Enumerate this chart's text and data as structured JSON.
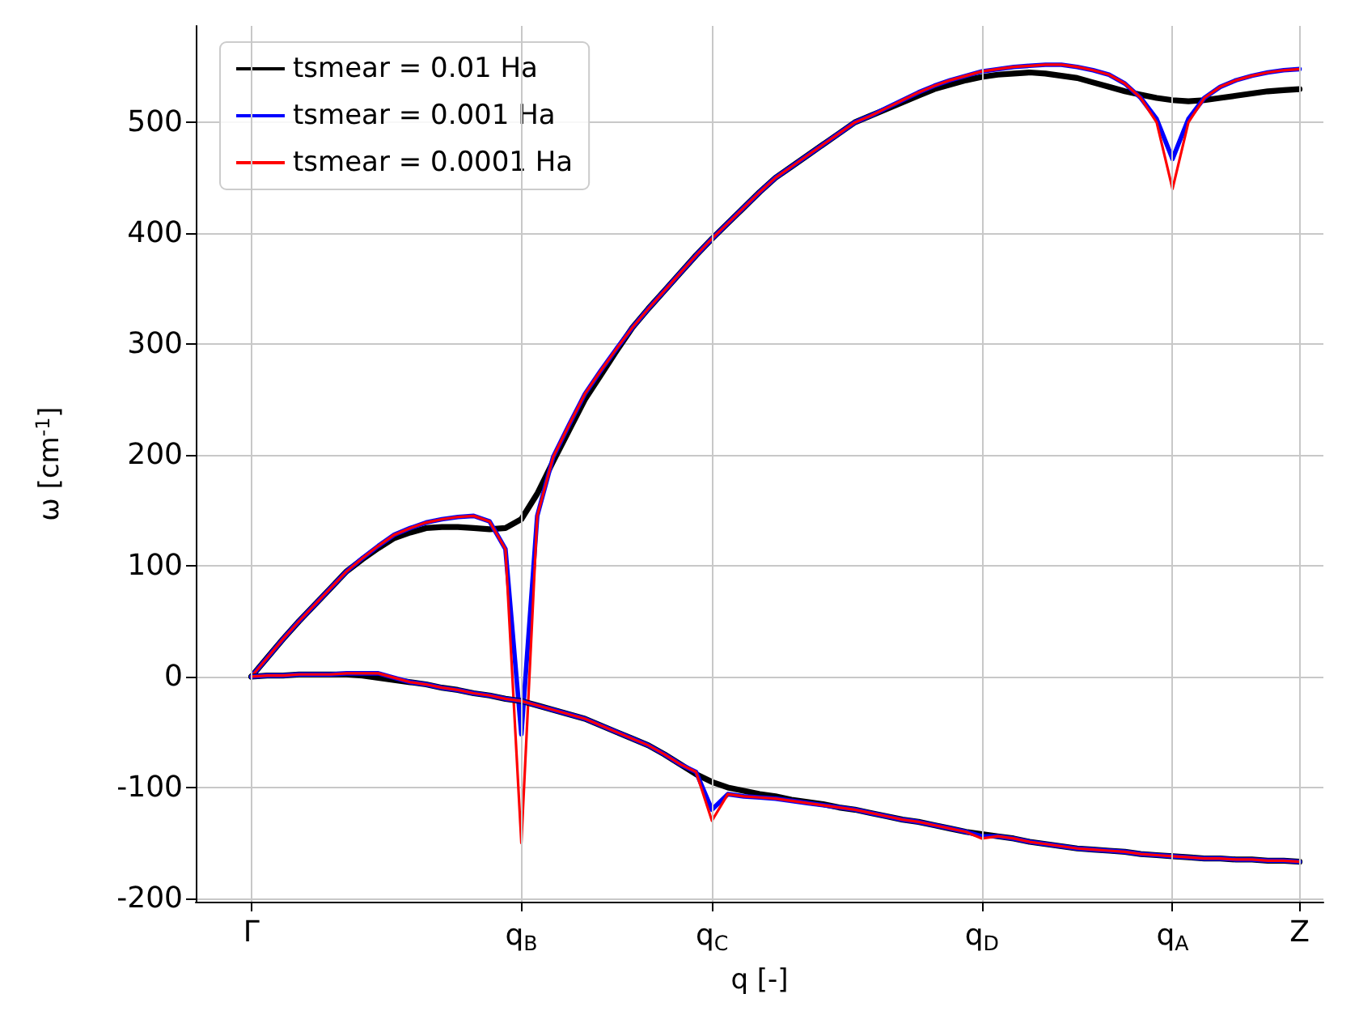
{
  "chart_data": {
    "type": "line",
    "xlabel": "q [-]",
    "ylabel": "ω [cm$^{-1}$]",
    "categories": [
      "Γ",
      null,
      null,
      null,
      null,
      null,
      null,
      null,
      null,
      null,
      null,
      null,
      null,
      null,
      null,
      null,
      null,
      "q$_{B}$",
      null,
      null,
      null,
      null,
      null,
      null,
      null,
      null,
      null,
      null,
      null,
      "q$_{C}$",
      null,
      null,
      null,
      null,
      null,
      null,
      null,
      null,
      null,
      null,
      null,
      null,
      null,
      null,
      null,
      null,
      "q$_{D}$",
      null,
      null,
      null,
      null,
      null,
      null,
      null,
      null,
      null,
      null,
      null,
      "q$_{A}$",
      null,
      null,
      null,
      null,
      null,
      null,
      null,
      "Z"
    ],
    "ylim": [
      -203,
      587
    ],
    "yticks": [
      -200,
      -100,
      0,
      100,
      200,
      300,
      400,
      500
    ],
    "grid": true,
    "legend": "top left",
    "marker": "none",
    "line_style": "solid",
    "series": [
      {
        "name": "tsmear = 0.01 Ha",
        "color": "#000000",
        "values": [
          0,
          17,
          34,
          50,
          65,
          80,
          95,
          106,
          116,
          125,
          130,
          134,
          135,
          135,
          134,
          133,
          134,
          142,
          165,
          194,
          222,
          250,
          272,
          294,
          315,
          332,
          348,
          364,
          380,
          395,
          409,
          423,
          437,
          450,
          460,
          470,
          480,
          490,
          500,
          506,
          512,
          518,
          524,
          530,
          534,
          538,
          541,
          543,
          544,
          545,
          544,
          542,
          540,
          536,
          532,
          528,
          525,
          522,
          520,
          519,
          520,
          522,
          524,
          526,
          528,
          529,
          530
        ]
      },
      {
        "name": "tsmear = 0.001 Ha",
        "color": "#0000ff",
        "values": [
          0,
          17,
          34,
          50,
          65,
          80,
          95,
          107,
          118,
          128,
          134,
          139,
          142,
          144,
          145,
          140,
          115,
          -52,
          145,
          198,
          227,
          255,
          276,
          296,
          315,
          332,
          348,
          364,
          380,
          395,
          409,
          423,
          437,
          450,
          460,
          470,
          480,
          490,
          500,
          506,
          513,
          520,
          527,
          533,
          538,
          542,
          546,
          548,
          550,
          551,
          552,
          552,
          550,
          547,
          543,
          535,
          522,
          503,
          467,
          503,
          522,
          532,
          538,
          542,
          545,
          547,
          548
        ]
      },
      {
        "name": "tsmear = 0.0001 Ha",
        "color": "#ff0000",
        "values": [
          0,
          17,
          34,
          50,
          65,
          80,
          95,
          107,
          118,
          128,
          134,
          139,
          142,
          144,
          145,
          140,
          115,
          -150,
          145,
          198,
          227,
          255,
          276,
          296,
          315,
          332,
          348,
          364,
          380,
          395,
          409,
          423,
          437,
          450,
          460,
          470,
          480,
          490,
          500,
          506,
          513,
          520,
          527,
          533,
          538,
          542,
          546,
          548,
          550,
          551,
          552,
          552,
          550,
          547,
          543,
          535,
          522,
          500,
          440,
          500,
          522,
          532,
          538,
          542,
          545,
          547,
          548
        ]
      },
      {
        "color": "#000000",
        "values": [
          0,
          1,
          1,
          2,
          2,
          2,
          2,
          1,
          -1,
          -3,
          -5,
          -7,
          -10,
          -12,
          -15,
          -17,
          -20,
          -22,
          -26,
          -30,
          -34,
          -38,
          -44,
          -50,
          -56,
          -62,
          -70,
          -79,
          -88,
          -95,
          -100,
          -103,
          -106,
          -108,
          -111,
          -113,
          -115,
          -118,
          -120,
          -123,
          -126,
          -129,
          -131,
          -134,
          -137,
          -140,
          -142,
          -144,
          -146,
          -149,
          -151,
          -153,
          -155,
          -156,
          -157,
          -158,
          -160,
          -161,
          -162,
          -163,
          -164,
          -164,
          -165,
          -165,
          -166,
          -166,
          -167
        ]
      },
      {
        "color": "#0000ff",
        "values": [
          0,
          1,
          1,
          2,
          2,
          2,
          3,
          3,
          3,
          -1,
          -5,
          -7,
          -10,
          -12,
          -15,
          -17,
          -20,
          -22,
          -26,
          -30,
          -34,
          -38,
          -44,
          -50,
          -56,
          -62,
          -70,
          -79,
          -86,
          -120,
          -106,
          -108,
          -109,
          -110,
          -112,
          -114,
          -116,
          -118,
          -120,
          -123,
          -126,
          -129,
          -131,
          -134,
          -137,
          -140,
          -144,
          -144,
          -146,
          -149,
          -151,
          -153,
          -155,
          -156,
          -157,
          -158,
          -160,
          -161,
          -162,
          -163,
          -164,
          -164,
          -165,
          -165,
          -166,
          -166,
          -167
        ]
      },
      {
        "color": "#ff0000",
        "values": [
          0,
          1,
          1,
          2,
          2,
          2,
          3,
          3,
          3,
          -1,
          -5,
          -7,
          -10,
          -12,
          -15,
          -17,
          -20,
          -22,
          -26,
          -30,
          -34,
          -38,
          -44,
          -50,
          -56,
          -62,
          -70,
          -79,
          -86,
          -130,
          -106,
          -108,
          -109,
          -110,
          -112,
          -114,
          -116,
          -118,
          -120,
          -123,
          -126,
          -129,
          -131,
          -134,
          -137,
          -140,
          -146,
          -144,
          -146,
          -149,
          -151,
          -153,
          -155,
          -156,
          -157,
          -158,
          -160,
          -161,
          -162,
          -163,
          -164,
          -164,
          -165,
          -165,
          -166,
          -166,
          -167
        ]
      }
    ]
  }
}
